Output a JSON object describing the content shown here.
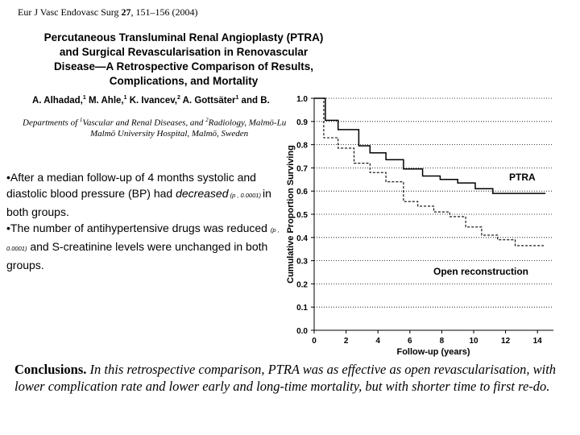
{
  "header": {
    "journal": "Eur J Vasc Endovasc Surg",
    "volume": "27",
    "pages_year": ", 151–156 (2004)"
  },
  "title_lines": [
    "Percutaneous Transluminal Renal Angioplasty (PTRA)",
    "and Surgical Revascularisation in Renovascular",
    "Disease—A Retrospective Comparison of Results,",
    "Complications, and Mortality"
  ],
  "authors": {
    "a1": "A. Alhadad,",
    "a1_sup": "1",
    "a2": " M. Ahle,",
    "a2_sup": "1",
    "a3": " K. Ivancev,",
    "a3_sup": "2",
    "a4": " A. Gottsäter",
    "a4_sup": "1",
    "tail": " and B."
  },
  "affiliations": {
    "part1": "Departments of ",
    "sup1": "1",
    "part2": "Vascular and Renal Diseases, and ",
    "sup2": "2",
    "part3": "Radiology, Malmö-Lu",
    "line2": "Malmö University Hospital, Malmö, Sweden"
  },
  "findings": {
    "b1_part1": "•After a median follow-up of 4 months systolic and diastolic blood pressure (BP) had ",
    "b1_emph": "decreased",
    "b1_pval": " (p , 0.0001) ",
    "b1_part2": "in both groups.",
    "b2_part1": "•The number of antihypertensive drugs was reduced ",
    "b2_pval": "(p , 0.0001)",
    "b2_part2": " and S-creatinine levels were unchanged in both groups."
  },
  "conclusions": {
    "label": "Conclusions.",
    "text": " In this retrospective comparison, PTRA was as effective as open revascularisation, with lower complication rate and lower early and long-time mortality, but with shorter time to first re-do."
  },
  "chart_data": {
    "type": "line",
    "subtype": "step",
    "xlabel": "Follow-up (years)",
    "ylabel": "Cumulative Proportion Surviving",
    "xlim": [
      0,
      15
    ],
    "ylim": [
      0,
      1.0
    ],
    "xticks": [
      "0",
      "2",
      "4",
      "6",
      "8",
      "10",
      "12",
      "14"
    ],
    "yticks": [
      "0.0",
      "0.1",
      "0.2",
      "0.3",
      "0.4",
      "0.5",
      "0.6",
      "0.7",
      "0.8",
      "0.9",
      "1.0"
    ],
    "grid": "horizontal-dotted",
    "series": [
      {
        "name": "PTRA",
        "style": "solid",
        "color": "#000000",
        "x": [
          0,
          0.7,
          0.7,
          1.5,
          1.5,
          2.8,
          2.8,
          3.5,
          3.5,
          4.5,
          4.5,
          5.6,
          5.6,
          6.8,
          6.8,
          7.9,
          7.9,
          9.0,
          9.0,
          10.1,
          10.1,
          11.2,
          11.2,
          14.5
        ],
        "y": [
          1.0,
          1.0,
          0.905,
          0.905,
          0.865,
          0.865,
          0.795,
          0.795,
          0.765,
          0.765,
          0.735,
          0.735,
          0.695,
          0.695,
          0.665,
          0.665,
          0.65,
          0.65,
          0.635,
          0.635,
          0.61,
          0.61,
          0.59,
          0.59
        ]
      },
      {
        "name": "Open reconstruction",
        "style": "dashed",
        "color": "#000000",
        "x": [
          0,
          0.6,
          0.6,
          1.5,
          1.5,
          2.5,
          2.5,
          3.5,
          3.5,
          4.5,
          4.5,
          5.6,
          5.6,
          6.5,
          6.5,
          7.5,
          7.5,
          8.5,
          8.5,
          9.5,
          9.5,
          10.5,
          10.5,
          11.5,
          11.5,
          12.6,
          12.6,
          14.5
        ],
        "y": [
          1.0,
          1.0,
          0.83,
          0.83,
          0.785,
          0.785,
          0.72,
          0.72,
          0.68,
          0.68,
          0.64,
          0.64,
          0.555,
          0.555,
          0.535,
          0.535,
          0.51,
          0.51,
          0.49,
          0.49,
          0.445,
          0.445,
          0.41,
          0.41,
          0.39,
          0.39,
          0.365,
          0.365
        ]
      }
    ],
    "annotations": [
      {
        "text": "PTRA",
        "series": "PTRA"
      },
      {
        "text": "Open reconstruction",
        "series": "Open reconstruction"
      }
    ]
  }
}
